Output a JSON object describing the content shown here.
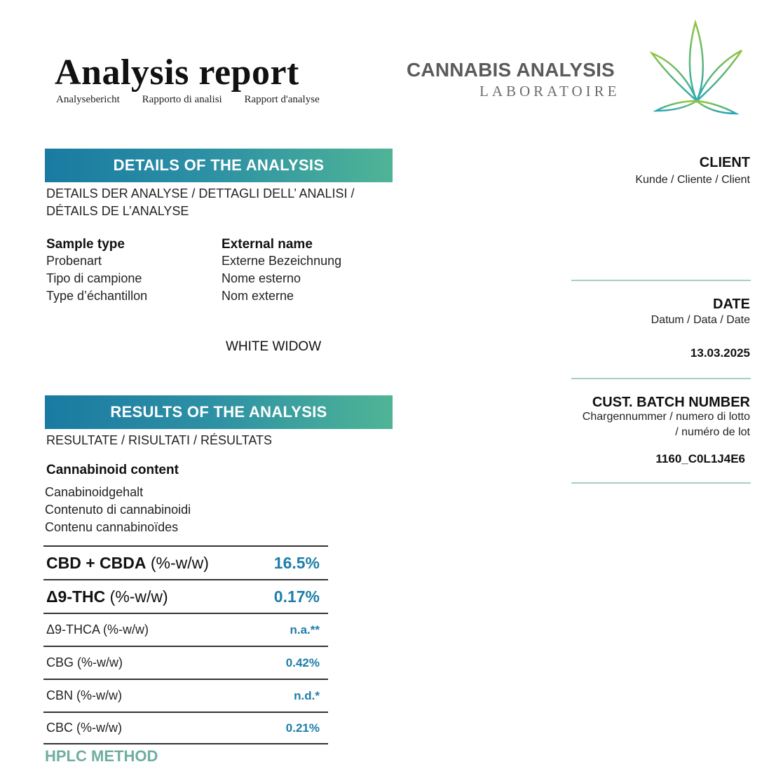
{
  "header": {
    "title": "Analysis report",
    "subtitles": [
      "Analysebericht",
      "Rapporto di analisi",
      "Rapport d'analyse"
    ]
  },
  "logo": {
    "name": "CANNABIS ANALYSIS",
    "sub": "LABORATOIRE",
    "icon": "cannabis-leaf-icon",
    "colors": {
      "green": "#8cc63f",
      "teal": "#2aa6b8"
    }
  },
  "details": {
    "banner": "DETAILS OF THE ANALYSIS",
    "subtitle_line1": "DETAILS DER ANALYSE / DETTAGLI DELL’ ANALISI /",
    "subtitle_line2": "DÉTAILS DE L’ANALYSE",
    "sample_type": {
      "label": "Sample type",
      "translations": [
        "Probenart",
        "Tipo di campione",
        "Type d’échantillon"
      ]
    },
    "external_name": {
      "label": "External name",
      "translations": [
        "Externe Bezeichnung",
        "Nome esterno",
        "Nom externe"
      ],
      "value": "WHITE WIDOW"
    }
  },
  "results": {
    "banner": "RESULTS OF THE ANALYSIS",
    "subtitle": "RESULTATE / RISULTATI / RÉSULTATS",
    "cannabinoid_heading": "Cannabinoid content",
    "cannabinoid_translations": [
      "Canabinoidgehalt",
      "Contenuto di cannabinoidi",
      "Contenu cannabinoïdes"
    ],
    "rows": [
      {
        "name_bold": "CBD + CBDA",
        "unit": " (%-w/w)",
        "value": "16.5%"
      },
      {
        "name_bold": "Δ9-THC",
        "unit": " (%-w/w)",
        "value": "0.17%"
      },
      {
        "name": "Δ9-THCA (%-w/w)",
        "value": "n.a.**"
      },
      {
        "name": "CBG (%-w/w)",
        "value": "0.42%"
      },
      {
        "name": "CBN (%-w/w)",
        "value": "n.d.*"
      },
      {
        "name": "CBC (%-w/w)",
        "value": "0.21%"
      }
    ],
    "method": "HPLC METHOD"
  },
  "right": {
    "client_head": "CLIENT",
    "client_sub": "Kunde / Cliente / Client",
    "date_head": "DATE",
    "date_sub": "Datum / Data / Date",
    "date_value": "13.03.2025",
    "batch_head": "CUST. BATCH NUMBER",
    "batch_sub1": "Chargennummer / numero di lotto",
    "batch_sub2": "/ numéro de lot",
    "batch_value": "1160_C0L1J4E6"
  }
}
